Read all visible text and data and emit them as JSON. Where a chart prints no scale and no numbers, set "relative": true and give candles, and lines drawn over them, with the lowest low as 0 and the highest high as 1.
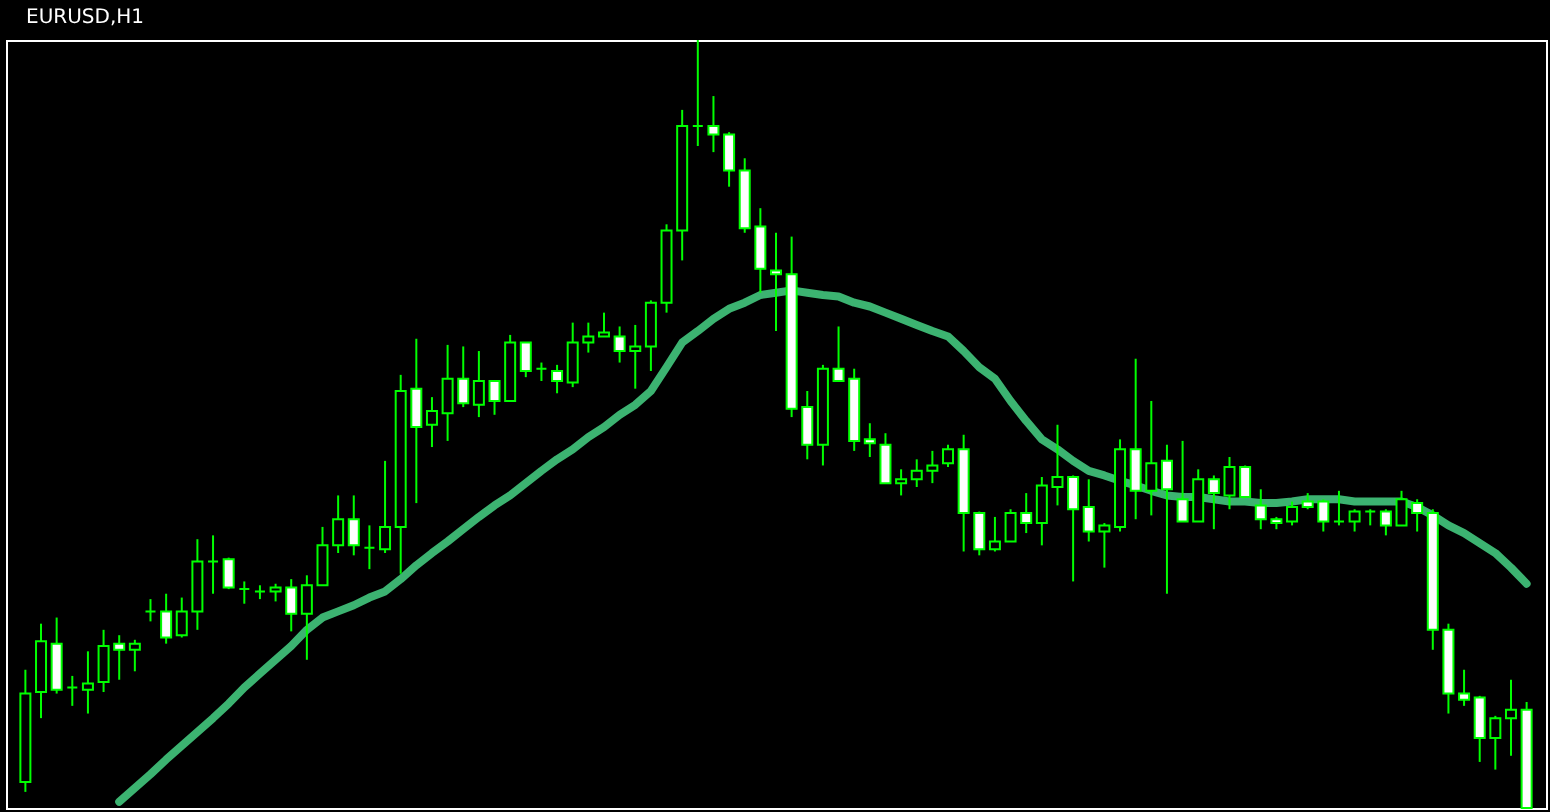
{
  "chart_data": {
    "type": "candlestick",
    "title": "EURUSD,H1",
    "relative": true,
    "color": "#00ff00",
    "categories": [
      null,
      null,
      null,
      null,
      null,
      null,
      null,
      null,
      null,
      null,
      null,
      null,
      null,
      null,
      null,
      null,
      null,
      null,
      null,
      null,
      null,
      null,
      null,
      null,
      null,
      null,
      null,
      null,
      null,
      null,
      null,
      null,
      null,
      null,
      null,
      null,
      null,
      null,
      null,
      null,
      null,
      null,
      null,
      null,
      null,
      null,
      null,
      null,
      null,
      null,
      null,
      null,
      null,
      null,
      null,
      null,
      null,
      null,
      null,
      null,
      null,
      null,
      null,
      null,
      null,
      null,
      null,
      null,
      null,
      null,
      null,
      null,
      null,
      null,
      null,
      null,
      null,
      null,
      null,
      null,
      null,
      null,
      null,
      null,
      null,
      null,
      null,
      null,
      null,
      null,
      null,
      null,
      null,
      null,
      null,
      null,
      null
    ],
    "ohlc": [
      [
        0.034,
        0.18,
        0.021,
        0.149
      ],
      [
        0.151,
        0.24,
        0.117,
        0.217
      ],
      [
        0.214,
        0.248,
        0.149,
        0.154
      ],
      [
        0.157,
        0.172,
        0.133,
        0.157
      ],
      [
        0.154,
        0.204,
        0.123,
        0.162
      ],
      [
        0.164,
        0.232,
        0.151,
        0.211
      ],
      [
        0.214,
        0.225,
        0.167,
        0.206
      ],
      [
        0.206,
        0.219,
        0.178,
        0.214
      ],
      [
        0.256,
        0.272,
        0.243,
        0.256
      ],
      [
        0.256,
        0.279,
        0.214,
        0.222
      ],
      [
        0.225,
        0.274,
        0.222,
        0.256
      ],
      [
        0.256,
        0.35,
        0.232,
        0.321
      ],
      [
        0.321,
        0.355,
        0.279,
        0.321
      ],
      [
        0.324,
        0.326,
        0.285,
        0.287
      ],
      [
        0.285,
        0.295,
        0.266,
        0.285
      ],
      [
        0.282,
        0.29,
        0.272,
        0.282
      ],
      [
        0.282,
        0.292,
        0.269,
        0.287
      ],
      [
        0.287,
        0.298,
        0.23,
        0.253
      ],
      [
        0.253,
        0.303,
        0.193,
        0.29
      ],
      [
        0.29,
        0.366,
        0.29,
        0.342
      ],
      [
        0.342,
        0.407,
        0.332,
        0.376
      ],
      [
        0.376,
        0.407,
        0.329,
        0.342
      ],
      [
        0.339,
        0.368,
        0.311,
        0.339
      ],
      [
        0.337,
        0.452,
        0.332,
        0.366
      ],
      [
        0.366,
        0.564,
        0.305,
        0.543
      ],
      [
        0.546,
        0.611,
        0.397,
        0.496
      ],
      [
        0.499,
        0.535,
        0.47,
        0.517
      ],
      [
        0.514,
        0.603,
        0.478,
        0.559
      ],
      [
        0.559,
        0.601,
        0.522,
        0.527
      ],
      [
        0.525,
        0.595,
        0.509,
        0.556
      ],
      [
        0.556,
        0.556,
        0.512,
        0.53
      ],
      [
        0.53,
        0.616,
        0.53,
        0.606
      ],
      [
        0.606,
        0.606,
        0.561,
        0.569
      ],
      [
        0.572,
        0.58,
        0.556,
        0.572
      ],
      [
        0.569,
        0.577,
        0.54,
        0.556
      ],
      [
        0.554,
        0.632,
        0.548,
        0.606
      ],
      [
        0.606,
        0.632,
        0.593,
        0.614
      ],
      [
        0.614,
        0.645,
        0.614,
        0.619
      ],
      [
        0.614,
        0.627,
        0.58,
        0.595
      ],
      [
        0.595,
        0.629,
        0.546,
        0.601
      ],
      [
        0.601,
        0.661,
        0.569,
        0.658
      ],
      [
        0.658,
        0.76,
        0.645,
        0.752
      ],
      [
        0.752,
        0.909,
        0.713,
        0.888
      ],
      [
        0.888,
        1,
        0.862,
        0.888
      ],
      [
        0.888,
        0.927,
        0.854,
        0.877
      ],
      [
        0.877,
        0.88,
        0.809,
        0.83
      ],
      [
        0.83,
        0.846,
        0.749,
        0.755
      ],
      [
        0.757,
        0.781,
        0.671,
        0.702
      ],
      [
        0.7,
        0.749,
        0.621,
        0.695
      ],
      [
        0.695,
        0.744,
        0.509,
        0.52
      ],
      [
        0.522,
        0.543,
        0.454,
        0.473
      ],
      [
        0.473,
        0.577,
        0.446,
        0.572
      ],
      [
        0.572,
        0.627,
        0.556,
        0.556
      ],
      [
        0.559,
        0.572,
        0.465,
        0.478
      ],
      [
        0.48,
        0.501,
        0.457,
        0.475
      ],
      [
        0.473,
        0.488,
        0.423,
        0.423
      ],
      [
        0.423,
        0.441,
        0.407,
        0.428
      ],
      [
        0.428,
        0.454,
        0.418,
        0.439
      ],
      [
        0.439,
        0.465,
        0.423,
        0.446
      ],
      [
        0.449,
        0.473,
        0.444,
        0.467
      ],
      [
        0.467,
        0.486,
        0.334,
        0.384
      ],
      [
        0.384,
        0.386,
        0.329,
        0.337
      ],
      [
        0.337,
        0.379,
        0.334,
        0.347
      ],
      [
        0.347,
        0.389,
        0.347,
        0.384
      ],
      [
        0.384,
        0.41,
        0.358,
        0.371
      ],
      [
        0.371,
        0.431,
        0.342,
        0.42
      ],
      [
        0.418,
        0.499,
        0.394,
        0.431
      ],
      [
        0.431,
        0.433,
        0.295,
        0.389
      ],
      [
        0.392,
        0.428,
        0.347,
        0.36
      ],
      [
        0.36,
        0.371,
        0.313,
        0.368
      ],
      [
        0.366,
        0.48,
        0.36,
        0.467
      ],
      [
        0.467,
        0.585,
        0.376,
        0.413
      ],
      [
        0.413,
        0.53,
        0.381,
        0.449
      ],
      [
        0.452,
        0.473,
        0.279,
        0.415
      ],
      [
        0.402,
        0.478,
        0.373,
        0.373
      ],
      [
        0.373,
        0.441,
        0.373,
        0.428
      ],
      [
        0.428,
        0.433,
        0.363,
        0.41
      ],
      [
        0.407,
        0.457,
        0.389,
        0.444
      ],
      [
        0.444,
        0.446,
        0.405,
        0.405
      ],
      [
        0.394,
        0.415,
        0.363,
        0.376
      ],
      [
        0.376,
        0.379,
        0.363,
        0.371
      ],
      [
        0.373,
        0.399,
        0.368,
        0.392
      ],
      [
        0.399,
        0.41,
        0.389,
        0.392
      ],
      [
        0.399,
        0.402,
        0.36,
        0.373
      ],
      [
        0.373,
        0.413,
        0.368,
        0.373
      ],
      [
        0.373,
        0.389,
        0.36,
        0.386
      ],
      [
        0.386,
        0.389,
        0.368,
        0.386
      ],
      [
        0.386,
        0.389,
        0.355,
        0.368
      ],
      [
        0.368,
        0.413,
        0.368,
        0.402
      ],
      [
        0.397,
        0.402,
        0.36,
        0.384
      ],
      [
        0.384,
        0.389,
        0.206,
        0.232
      ],
      [
        0.232,
        0.24,
        0.123,
        0.149
      ],
      [
        0.149,
        0.18,
        0.133,
        0.141
      ],
      [
        0.144,
        0.146,
        0.06,
        0.091
      ],
      [
        0.091,
        0.12,
        0.05,
        0.117
      ],
      [
        0.117,
        0.167,
        0.068,
        0.128
      ],
      [
        0.128,
        0.138,
        0,
        0
      ]
    ],
    "series": [
      {
        "type": "line",
        "color": "#3cb371",
        "values": [
          null,
          null,
          null,
          null,
          null,
          null,
          0.008,
          0.026,
          0.044,
          0.063,
          0.081,
          0.099,
          0.117,
          0.136,
          0.157,
          0.175,
          0.193,
          0.211,
          0.232,
          0.248,
          0.256,
          0.264,
          0.274,
          0.282,
          0.298,
          0.316,
          0.332,
          0.347,
          0.363,
          0.379,
          0.394,
          0.407,
          0.423,
          0.439,
          0.454,
          0.467,
          0.483,
          0.496,
          0.512,
          0.525,
          0.543,
          0.574,
          0.606,
          0.621,
          0.637,
          0.65,
          0.658,
          0.668,
          0.671,
          0.674,
          0.671,
          0.668,
          0.666,
          0.658,
          0.653,
          0.645,
          0.637,
          0.629,
          0.621,
          0.614,
          0.595,
          0.574,
          0.559,
          0.53,
          0.504,
          0.48,
          0.467,
          0.452,
          0.439,
          0.433,
          0.426,
          0.42,
          0.413,
          0.407,
          0.405,
          0.405,
          0.402,
          0.399,
          0.399,
          0.397,
          0.397,
          0.399,
          0.402,
          0.402,
          0.402,
          0.399,
          0.399,
          0.399,
          0.399,
          0.392,
          0.381,
          0.368,
          0.358,
          0.345,
          0.332,
          0.313,
          0.292
        ]
      }
    ]
  }
}
